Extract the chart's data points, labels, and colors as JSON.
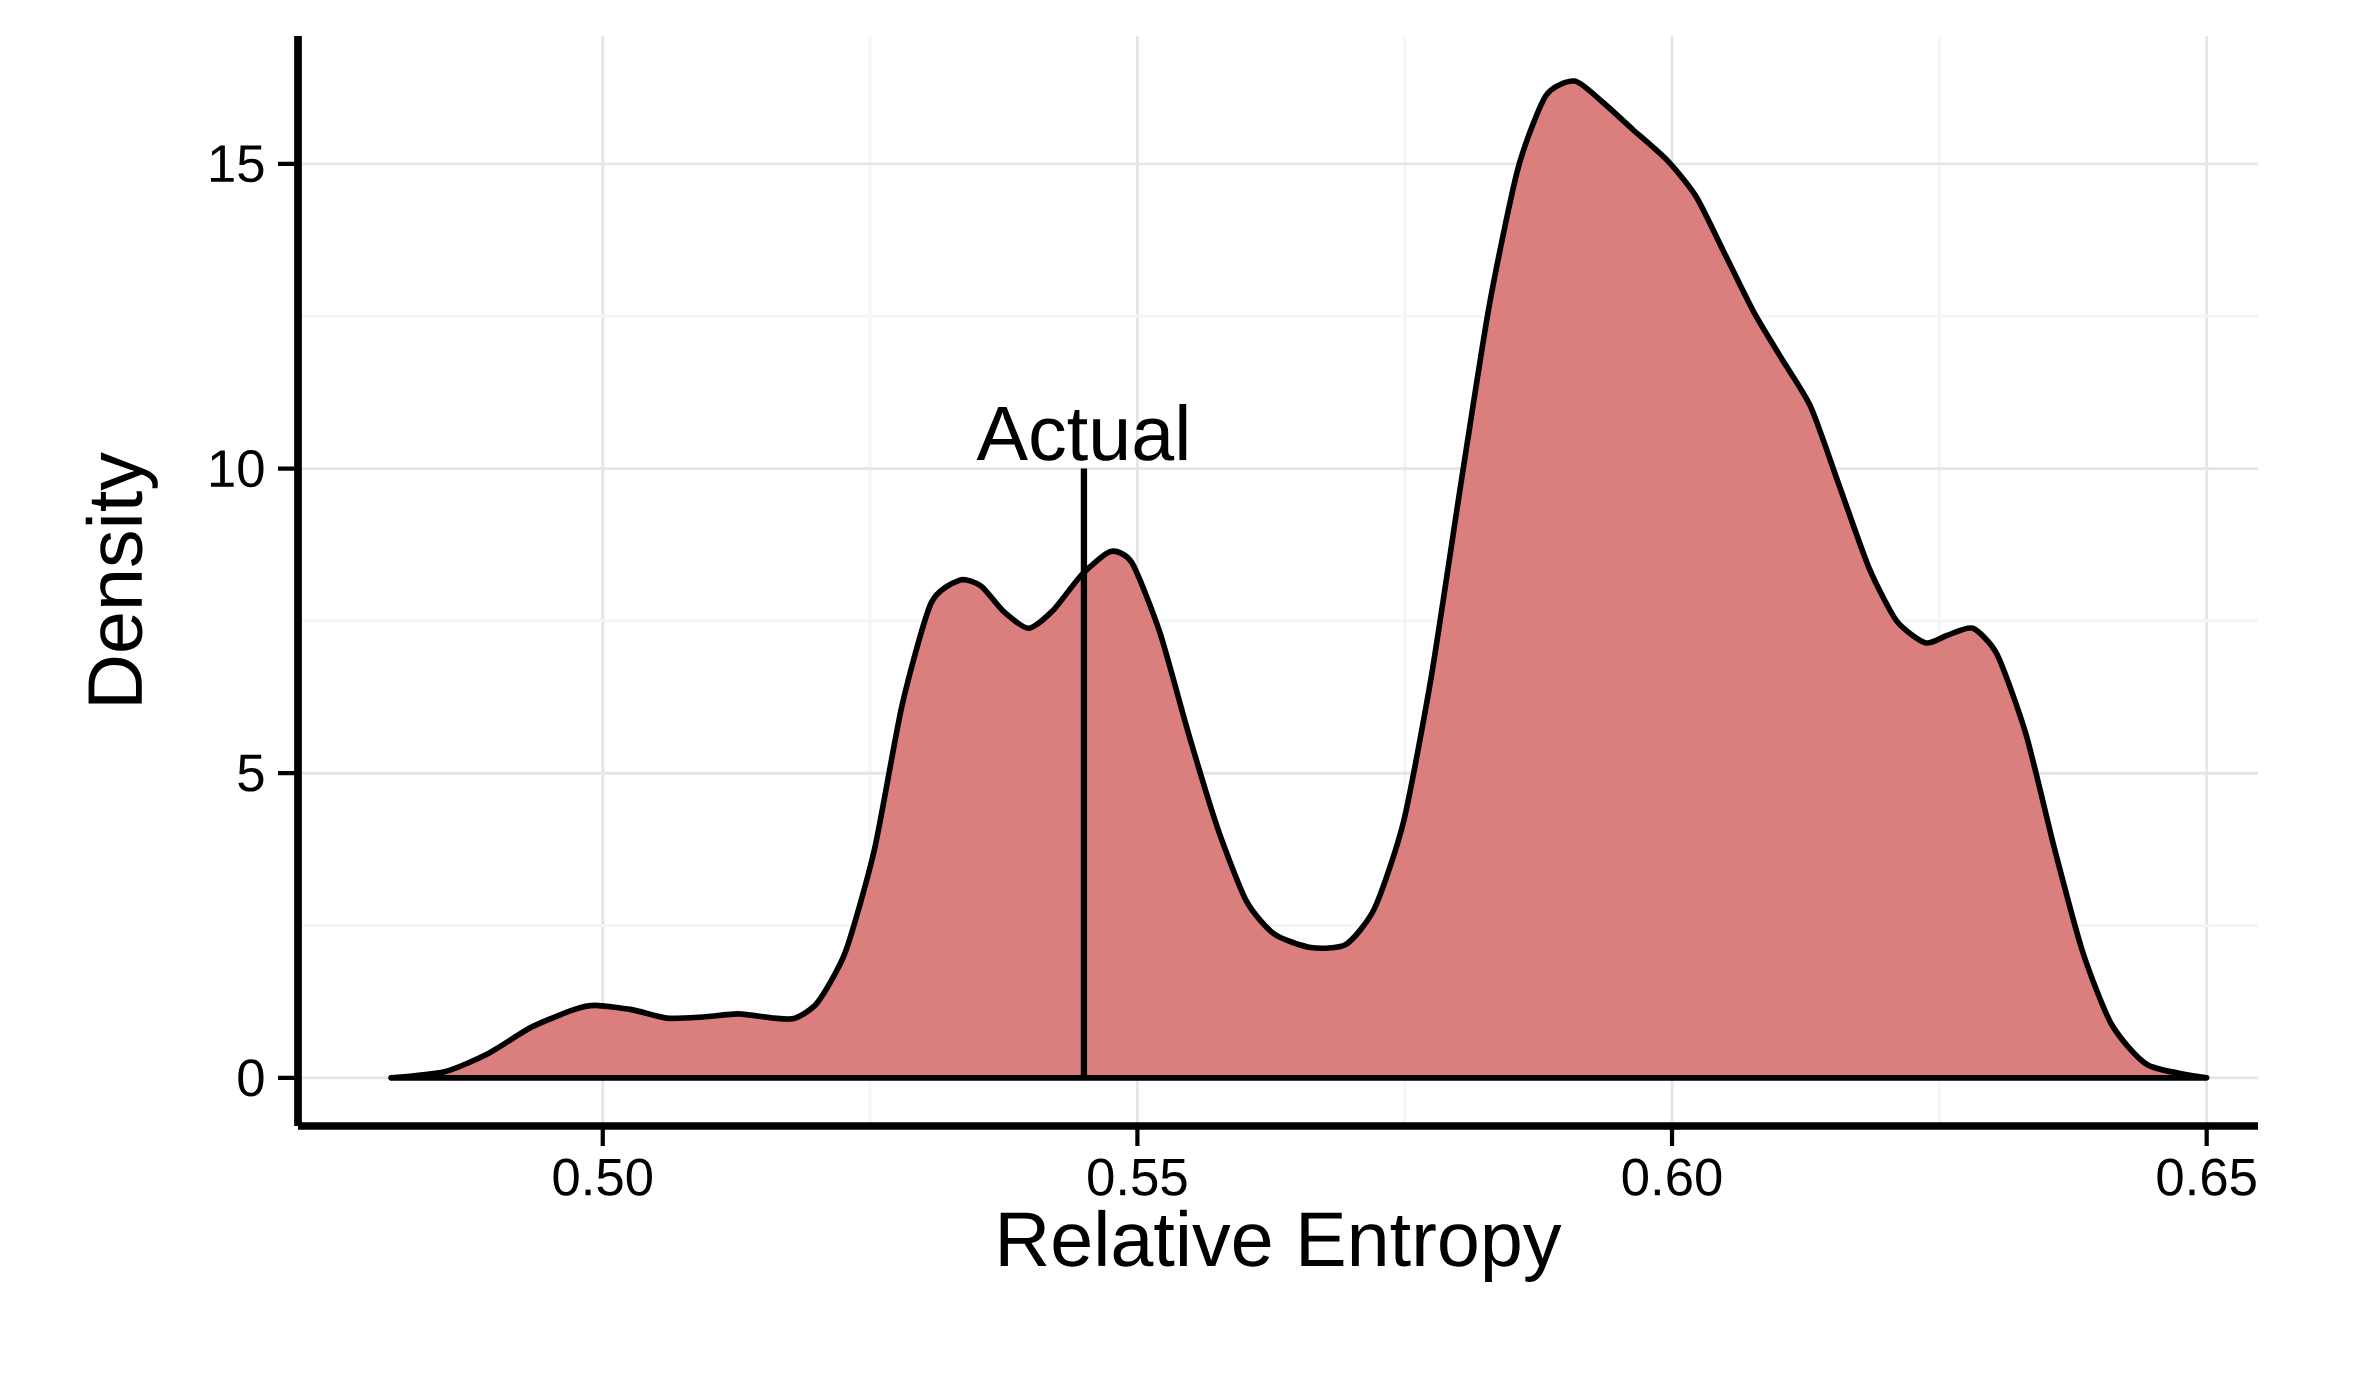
{
  "chart_data": {
    "type": "area",
    "xlabel": "Relative Entropy",
    "ylabel": "Density",
    "xlim": [
      0.4715,
      0.6548
    ],
    "ylim": [
      -0.79,
      17.1
    ],
    "xticks": [
      {
        "value": 0.5,
        "label": "0.50"
      },
      {
        "value": 0.55,
        "label": "0.55"
      },
      {
        "value": 0.6,
        "label": "0.60"
      },
      {
        "value": 0.65,
        "label": "0.65"
      }
    ],
    "yticks": [
      0,
      5,
      10,
      15
    ],
    "grid": true,
    "annotations": [
      {
        "text": "Actual",
        "x": 0.545,
        "y": 10
      }
    ],
    "series": [
      {
        "color": "#db7f7e",
        "x": [
          0.4802,
          0.4852,
          0.4893,
          0.4933,
          0.4973,
          0.4993,
          0.5027,
          0.506,
          0.5094,
          0.5127,
          0.516,
          0.518,
          0.5201,
          0.5227,
          0.5254,
          0.528,
          0.5307,
          0.5334,
          0.5354,
          0.5374,
          0.5398,
          0.5421,
          0.5448,
          0.5475,
          0.5495,
          0.5521,
          0.5548,
          0.5575,
          0.5602,
          0.5628,
          0.5662,
          0.5695,
          0.5722,
          0.5749,
          0.5775,
          0.5802,
          0.5829,
          0.5856,
          0.5882,
          0.5909,
          0.5936,
          0.5963,
          0.5996,
          0.6023,
          0.605,
          0.6077,
          0.6103,
          0.613,
          0.6157,
          0.6184,
          0.621,
          0.6237,
          0.6257,
          0.6281,
          0.6304,
          0.6331,
          0.6358,
          0.6384,
          0.6411,
          0.6445,
          0.65
        ],
        "values": [
          0,
          0.1,
          0.4,
          0.83,
          1.12,
          1.19,
          1.12,
          0.98,
          1.0,
          1.05,
          0.98,
          0.98,
          1.24,
          2.07,
          3.74,
          6.12,
          7.79,
          8.17,
          8.07,
          7.67,
          7.38,
          7.67,
          8.26,
          8.64,
          8.45,
          7.31,
          5.64,
          4.1,
          2.9,
          2.36,
          2.14,
          2.19,
          2.79,
          4.21,
          6.6,
          9.69,
          12.67,
          14.93,
          16.12,
          16.36,
          16.0,
          15.57,
          15.05,
          14.45,
          13.5,
          12.55,
          11.79,
          11.0,
          9.69,
          8.38,
          7.5,
          7.14,
          7.26,
          7.38,
          6.95,
          5.64,
          3.74,
          2.07,
          0.88,
          0.21,
          0
        ]
      },
      {
        "type": "line",
        "color": "#000000",
        "x": [
          0.545,
          0.545
        ],
        "values": [
          0,
          10
        ]
      }
    ]
  }
}
